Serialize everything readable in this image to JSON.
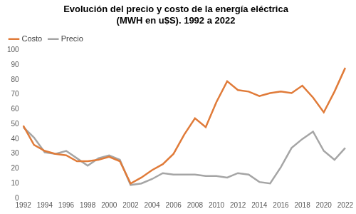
{
  "chart_data": {
    "type": "line",
    "title": [
      "Evolución del precio y costo de la energía eléctrica",
      "(MWH en u$S). 1992 a 2022"
    ],
    "categories": [
      "1992",
      null,
      "1994",
      null,
      "1996",
      null,
      "1998",
      null,
      "2000",
      null,
      "2002",
      null,
      "2004",
      null,
      "2006",
      null,
      "2008",
      null,
      "2010",
      null,
      "2012",
      null,
      "2014",
      null,
      "2016",
      null,
      "2018",
      null,
      "2020",
      null,
      "2022"
    ],
    "series": [
      {
        "name": "Costo",
        "color": "#e07b39",
        "values": [
          49,
          36,
          32,
          30,
          29,
          25,
          25,
          26,
          28,
          25,
          10,
          14,
          19,
          23,
          30,
          43,
          54,
          48,
          65,
          79,
          73,
          72,
          69,
          71,
          72,
          71,
          76,
          68,
          58,
          72,
          88
        ]
      },
      {
        "name": "Precio",
        "color": "#a5a5a5",
        "values": [
          48,
          41,
          31,
          30,
          32,
          27,
          22,
          27,
          29,
          26,
          9,
          10,
          13,
          17,
          16,
          16,
          16,
          15,
          15,
          14,
          17,
          16,
          11,
          10,
          21,
          34,
          40,
          45,
          32,
          26,
          34
        ]
      }
    ],
    "ylim": [
      0,
      100
    ],
    "yticks": [
      0,
      10,
      20,
      30,
      40,
      50,
      60,
      70,
      80,
      90,
      100
    ],
    "grid": false,
    "legend": "upper left"
  }
}
